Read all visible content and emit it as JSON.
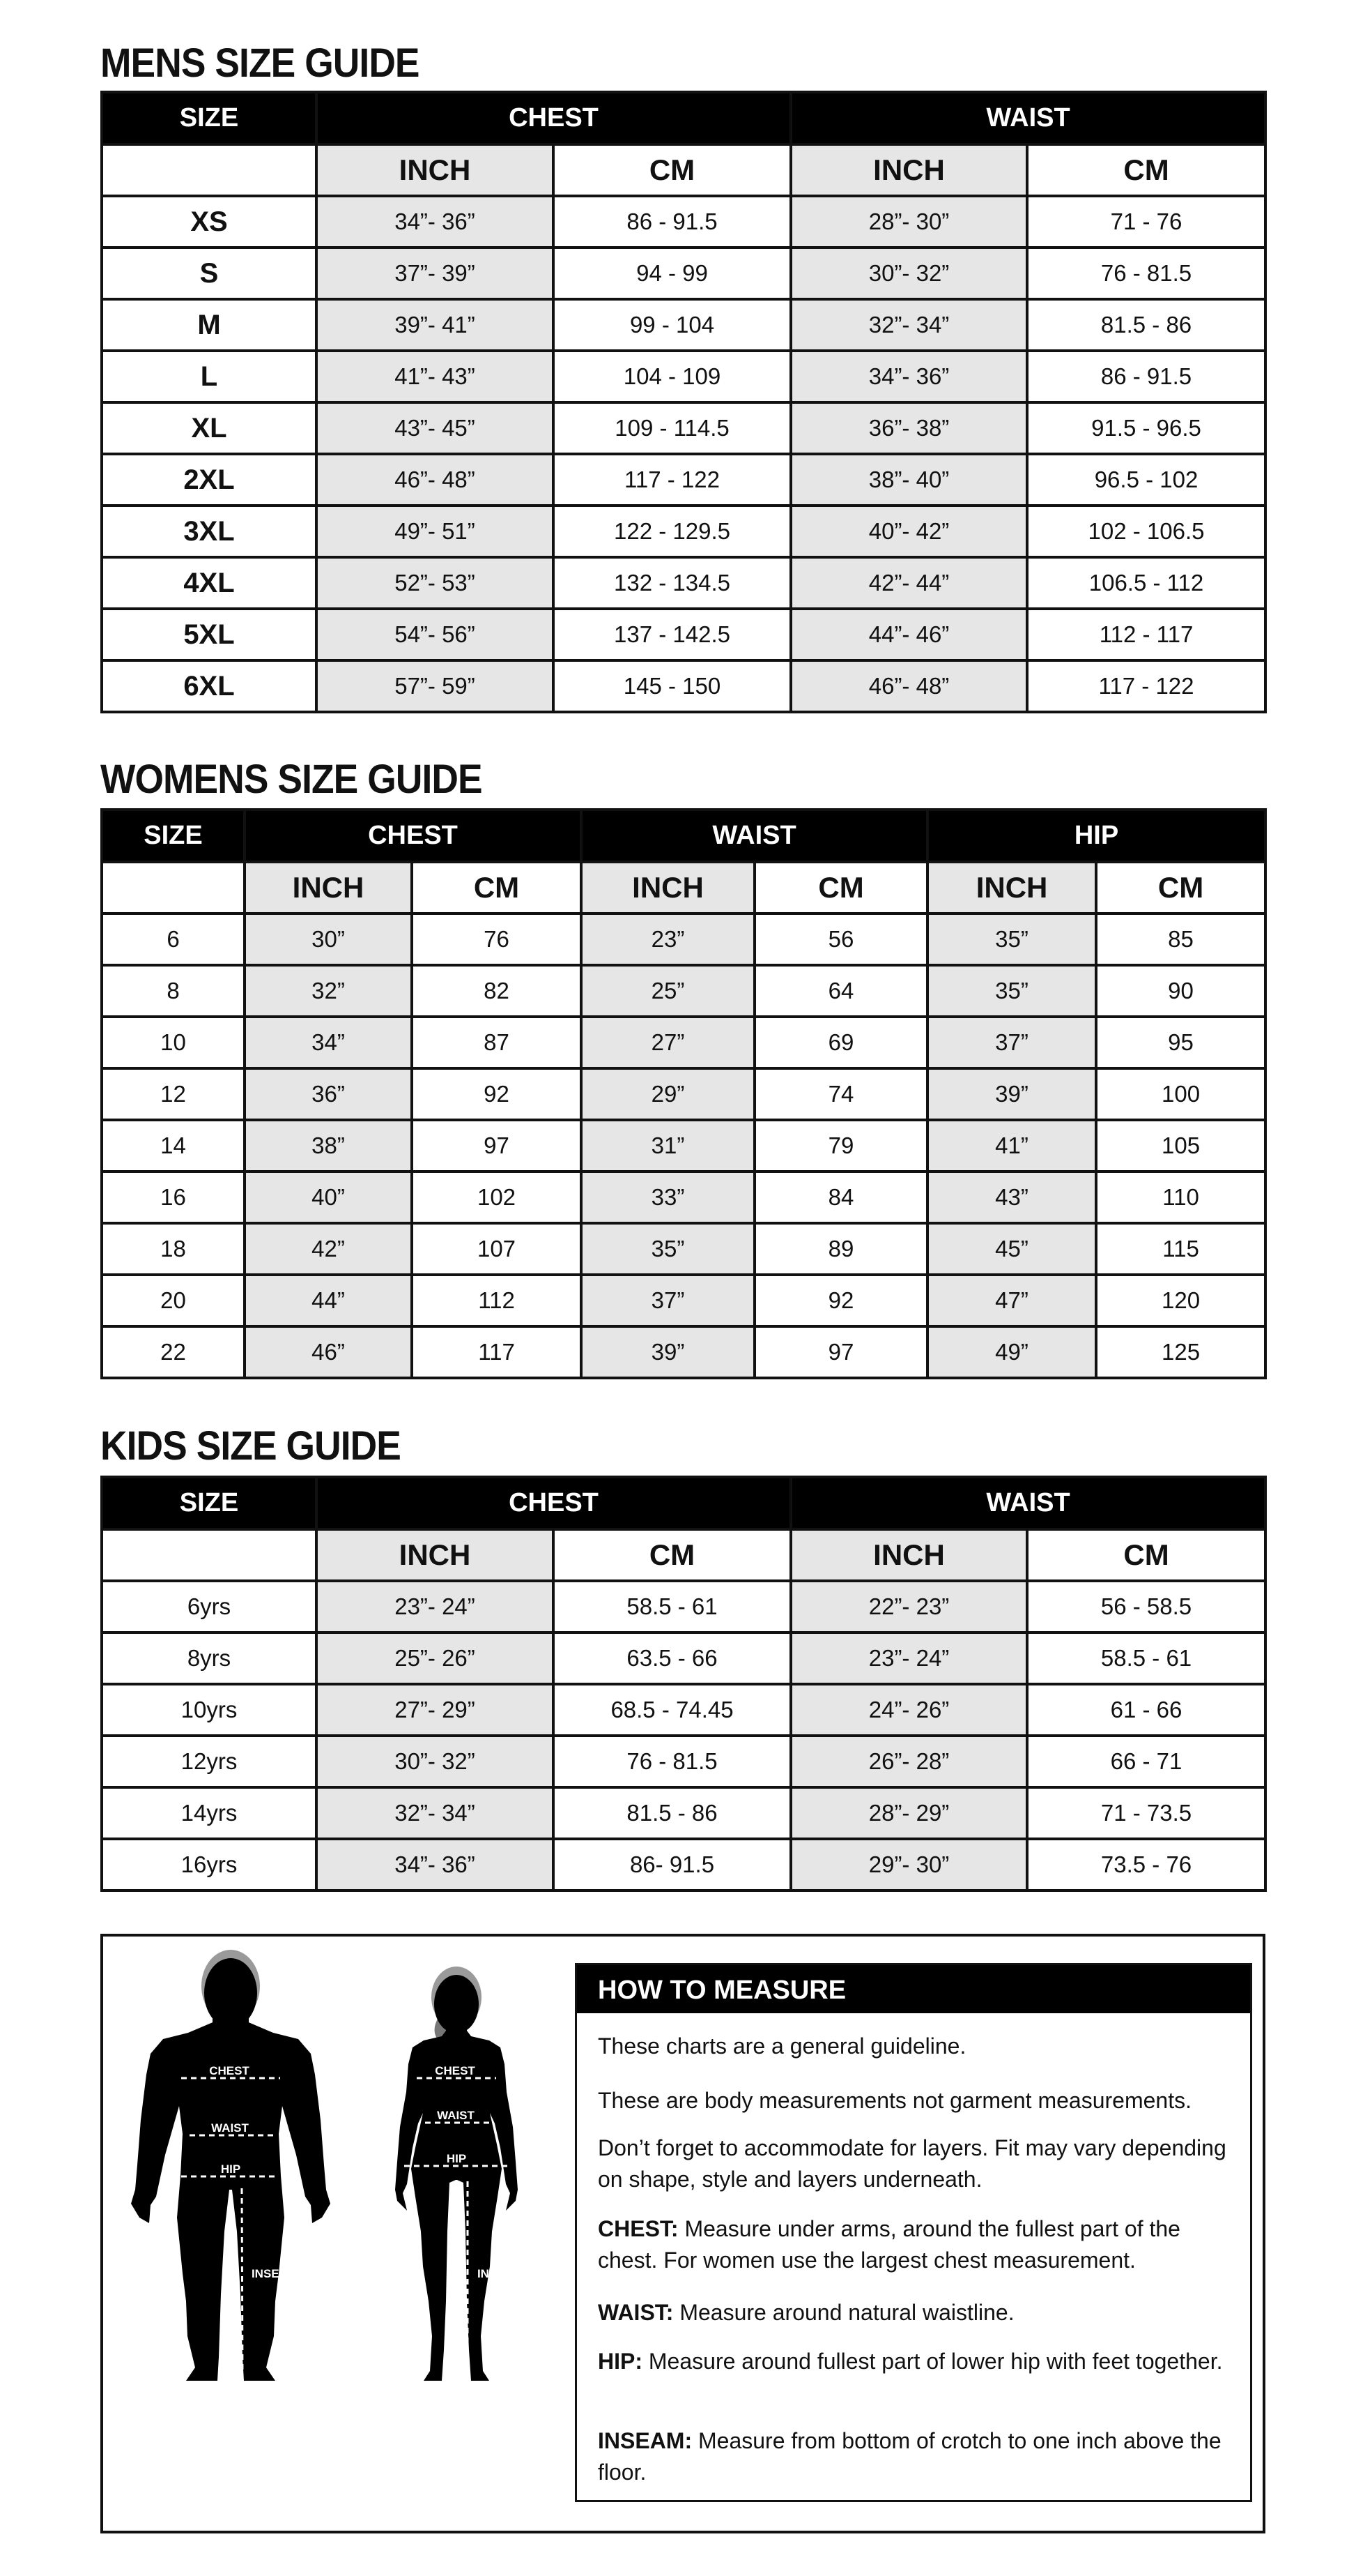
{
  "mens": {
    "title": "MENS SIZE GUIDE",
    "groups": [
      "SIZE",
      "CHEST",
      "WAIST"
    ],
    "subheaders": [
      "",
      "INCH",
      "CM",
      "INCH",
      "CM"
    ],
    "rows": [
      [
        "XS",
        "34”- 36”",
        "86 - 91.5",
        "28”- 30”",
        "71 - 76"
      ],
      [
        "S",
        "37”- 39”",
        "94 - 99",
        "30”- 32”",
        "76 - 81.5"
      ],
      [
        "M",
        "39”- 41”",
        "99 - 104",
        "32”- 34”",
        "81.5 - 86"
      ],
      [
        "L",
        "41”- 43”",
        "104 - 109",
        "34”- 36”",
        "86 - 91.5"
      ],
      [
        "XL",
        "43”- 45”",
        "109 - 114.5",
        "36”- 38”",
        "91.5 - 96.5"
      ],
      [
        "2XL",
        "46”- 48”",
        "117 - 122",
        "38”- 40”",
        "96.5 - 102"
      ],
      [
        "3XL",
        "49”- 51”",
        "122 - 129.5",
        "40”- 42”",
        "102 - 106.5"
      ],
      [
        "4XL",
        "52”- 53”",
        "132 - 134.5",
        "42”- 44”",
        "106.5 - 112"
      ],
      [
        "5XL",
        "54”- 56”",
        "137 - 142.5",
        "44”- 46”",
        "112 - 117"
      ],
      [
        "6XL",
        "57”- 59”",
        "145 - 150",
        "46”- 48”",
        "117 - 122"
      ]
    ]
  },
  "womens": {
    "title": "WOMENS SIZE GUIDE",
    "groups": [
      "SIZE",
      "CHEST",
      "WAIST",
      "HIP"
    ],
    "subheaders": [
      "",
      "INCH",
      "CM",
      "INCH",
      "CM",
      "INCH",
      "CM"
    ],
    "rows": [
      [
        "6",
        "30”",
        "76",
        "23”",
        "56",
        "35”",
        "85"
      ],
      [
        "8",
        "32”",
        "82",
        "25”",
        "64",
        "35”",
        "90"
      ],
      [
        "10",
        "34”",
        "87",
        "27”",
        "69",
        "37”",
        "95"
      ],
      [
        "12",
        "36”",
        "92",
        "29”",
        "74",
        "39”",
        "100"
      ],
      [
        "14",
        "38”",
        "97",
        "31”",
        "79",
        "41”",
        "105"
      ],
      [
        "16",
        "40”",
        "102",
        "33”",
        "84",
        "43”",
        "110"
      ],
      [
        "18",
        "42”",
        "107",
        "35”",
        "89",
        "45”",
        "115"
      ],
      [
        "20",
        "44”",
        "112",
        "37”",
        "92",
        "47”",
        "120"
      ],
      [
        "22",
        "46”",
        "117",
        "39”",
        "97",
        "49”",
        "125"
      ]
    ]
  },
  "kids": {
    "title": "KIDS SIZE GUIDE",
    "groups": [
      "SIZE",
      "CHEST",
      "WAIST"
    ],
    "subheaders": [
      "",
      "INCH",
      "CM",
      "INCH",
      "CM"
    ],
    "rows": [
      [
        "6yrs",
        "23”- 24”",
        "58.5 - 61",
        "22”- 23”",
        "56 - 58.5"
      ],
      [
        "8yrs",
        "25”- 26”",
        "63.5 - 66",
        "23”- 24”",
        "58.5 - 61"
      ],
      [
        "10yrs",
        "27”- 29”",
        "68.5 - 74.45",
        "24”- 26”",
        "61 - 66"
      ],
      [
        "12yrs",
        "30”- 32”",
        "76 - 81.5",
        "26”- 28”",
        "66 - 71"
      ],
      [
        "14yrs",
        "32”- 34”",
        "81.5 - 86",
        "28”- 29”",
        "71 - 73.5"
      ],
      [
        "16yrs",
        "34”- 36”",
        "86- 91.5",
        "29”- 30”",
        "73.5 - 76"
      ]
    ]
  },
  "figures": {
    "labels": [
      "CHEST",
      "WAIST",
      "HIP",
      "INSEAM"
    ]
  },
  "how_to_measure": {
    "title": "HOW TO MEASURE",
    "intro": [
      "These charts are a general guideline.",
      "These are body measurements not garment measurements.",
      "Don’t forget to accommodate for layers. Fit may vary depending on shape, style and layers underneath."
    ],
    "items": [
      {
        "term": "CHEST:",
        "text": " Measure under arms, around the fullest part of the chest. For women use the largest chest measurement."
      },
      {
        "term": "WAIST:",
        "text": " Measure around natural waistline."
      },
      {
        "term": "HIP:",
        "text": " Measure around fullest part of lower hip with feet together."
      },
      {
        "term": "INSEAM:",
        "text": " Measure from bottom of crotch to one inch above the floor."
      }
    ]
  }
}
